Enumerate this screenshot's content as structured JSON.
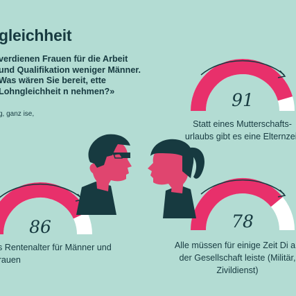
{
  "header": {
    "title": "gleichheit",
    "question": "verdienen Frauen für die Arbeit und Qualifikation weniger Männer. Was wären Sie bereit, ette Lohngleichheit n nehmen?»",
    "note": "g, ganz ise,"
  },
  "answers": [
    {
      "value": "91",
      "percent": 91,
      "caption": "Statt eines Mutterschafts­urlaubs gibt es eine Elternzeit"
    },
    {
      "value": "86",
      "percent": 86,
      "caption": "es Rentenalter für Männer und Frauen"
    },
    {
      "value": "78",
      "percent": 78,
      "caption": "Alle müssen für einige Zeit Di an der Gesellschaft leiste (Militär, Zivildienst)"
    }
  ],
  "colors": {
    "background": "#b3dcd3",
    "accent": "#e8306b",
    "dark": "#173a40",
    "skin": "#e0456f",
    "track": "#ffffff"
  },
  "icons": [
    "man-profile-icon",
    "woman-profile-icon",
    "arrow-arc-icon"
  ]
}
